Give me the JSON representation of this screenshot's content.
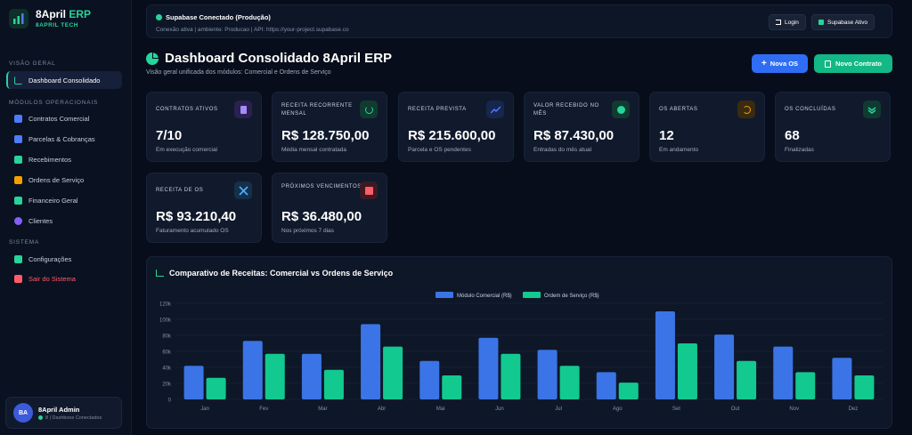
{
  "brand": {
    "name_main": "8April",
    "name_accent": " ERP",
    "subtitle": "8APRIL TECH"
  },
  "sidebar": {
    "section_general": "VISÃO GERAL",
    "section_operational": "MÓDULOS OPERACIONAIS",
    "section_system": "SISTEMA",
    "items": [
      {
        "label": "Dashboard Consolidado",
        "icon": "chart-icon",
        "color": "#27d49a"
      },
      {
        "label": "Contratos Comercial",
        "icon": "document-icon",
        "color": "#4d7cff"
      },
      {
        "label": "Parcelas & Cobranças",
        "icon": "invoice-icon",
        "color": "#4d7cff"
      },
      {
        "label": "Recebimentos",
        "icon": "money-hand-icon",
        "color": "#27d49a"
      },
      {
        "label": "Ordens de Serviço",
        "icon": "tools-icon",
        "color": "#f59f00"
      },
      {
        "label": "Financeiro Geral",
        "icon": "wallet-icon",
        "color": "#27d49a"
      },
      {
        "label": "Clientes",
        "icon": "users-icon",
        "color": "#845ef7"
      },
      {
        "label": "Configurações",
        "icon": "sliders-icon",
        "color": "#27d49a"
      },
      {
        "label": "Sair do Sistema",
        "icon": "logout-icon",
        "color": "#ff5c6a"
      }
    ]
  },
  "user": {
    "initials": "BA",
    "name": "8April Admin",
    "status": "8 | Dashboos Conectados"
  },
  "banner": {
    "title": "Supabase Conectado (Produção)",
    "subtitle": "Conexão ativa | ambiente: Producao | API: https://your-project.supabase.co",
    "login_label": "Login",
    "supabase_label": "Supabase Ativo"
  },
  "header": {
    "title": "Dashboard Consolidado 8April ERP",
    "subtitle": "Visão geral unificada dos módulos: Comercial e Ordens de Serviço",
    "new_os_label": "Nova OS",
    "new_contract_label": "Novo Contrato"
  },
  "cards": [
    {
      "label": "CONTRATOS ATIVOS",
      "value": "7/10",
      "desc": "Em execução comercial",
      "icon": "document-icon",
      "icon_color": "#a78bfa",
      "icon_bg": "#2a2150"
    },
    {
      "label": "RECEITA RECORRENTE MENSAL",
      "value": "R$ 128.750,00",
      "desc": "Média mensal contratada",
      "icon": "refresh-icon",
      "icon_color": "#27d49a",
      "icon_bg": "#113a30"
    },
    {
      "label": "RECEITA PREVISTA",
      "value": "R$ 215.600,00",
      "desc": "Parcela e OS pendentes",
      "icon": "trend-icon",
      "icon_color": "#4d7cff",
      "icon_bg": "#17264d"
    },
    {
      "label": "VALOR RECEBIDO NO MÊS",
      "value": "R$ 87.430,00",
      "desc": "Entradas do mês atual",
      "icon": "plus-circle-icon",
      "icon_color": "#27d49a",
      "icon_bg": "#113a30"
    },
    {
      "label": "OS ABERTAS",
      "value": "12",
      "desc": "Em andamento",
      "icon": "history-icon",
      "icon_color": "#f59f00",
      "icon_bg": "#3a2a10"
    },
    {
      "label": "OS CONCLUÍDAS",
      "value": "68",
      "desc": "Finalizadas",
      "icon": "double-check-icon",
      "icon_color": "#27d49a",
      "icon_bg": "#113a30"
    },
    {
      "label": "RECEITA DE OS",
      "value": "R$ 93.210,40",
      "desc": "Faturamento acumulado OS",
      "icon": "tools-icon",
      "icon_color": "#4dabf7",
      "icon_bg": "#14304a"
    },
    {
      "label": "PRÓXIMOS VENCIMENTOS",
      "value": "R$ 36.480,00",
      "desc": "Nos próximos 7 dias",
      "icon": "calendar-icon",
      "icon_color": "#ff5c6a",
      "icon_bg": "#3d1a22"
    }
  ],
  "chart_data": {
    "type": "bar",
    "title": "Comparativo de Receitas: Comercial vs Ordens de Serviço",
    "categories": [
      "Jan",
      "Fev",
      "Mar",
      "Abr",
      "Mai",
      "Jun",
      "Jul",
      "Ago",
      "Set",
      "Out",
      "Nov",
      "Dez"
    ],
    "series": [
      {
        "name": "Módulo Comercial (R$)",
        "color": "#3b74e6",
        "values": [
          42000,
          73000,
          57000,
          94000,
          48000,
          77000,
          62000,
          34000,
          110000,
          81000,
          66000,
          52000
        ]
      },
      {
        "name": "Ordem de Serviço (R$)",
        "color": "#12c98f",
        "values": [
          27000,
          57000,
          37000,
          66000,
          30000,
          57000,
          42000,
          21000,
          70000,
          48000,
          34000,
          30000
        ]
      }
    ],
    "y_ticks": [
      "0",
      "20k",
      "40k",
      "60k",
      "80k",
      "100k",
      "120k"
    ],
    "ylim": [
      0,
      120000
    ],
    "legend": "top-center",
    "grid": true
  }
}
